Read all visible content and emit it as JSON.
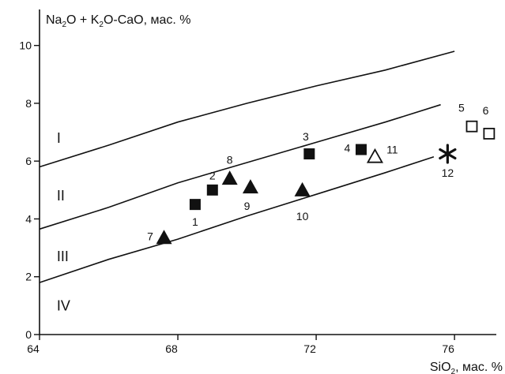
{
  "chart_data": {
    "type": "scatter",
    "ylabel_parts": [
      "Na",
      "2",
      "O + K",
      "2",
      "O-CaO, мас. %"
    ],
    "xlabel_parts": [
      "SiO",
      "2",
      ", мас. %"
    ],
    "xlim": [
      64,
      77.3
    ],
    "ylim": [
      0,
      11
    ],
    "x_ticks": [
      64,
      68,
      72,
      76
    ],
    "y_ticks": [
      0,
      2,
      4,
      6,
      8,
      10
    ],
    "boundary_lines": [
      {
        "x": [
          64,
          66,
          68,
          70,
          72,
          74,
          76
        ],
        "y": [
          5.8,
          6.55,
          7.35,
          8.0,
          8.6,
          9.15,
          9.8
        ]
      },
      {
        "x": [
          64,
          66,
          68,
          70,
          72,
          74,
          75.6
        ],
        "y": [
          3.65,
          4.4,
          5.25,
          5.95,
          6.65,
          7.35,
          7.95
        ]
      },
      {
        "x": [
          64,
          66,
          68,
          70,
          72,
          74,
          75.4
        ],
        "y": [
          1.8,
          2.6,
          3.3,
          4.1,
          4.85,
          5.6,
          6.15
        ]
      }
    ],
    "fields": [
      {
        "label": "I",
        "x": 64.5,
        "y": 6.8
      },
      {
        "label": "II",
        "x": 64.5,
        "y": 4.8
      },
      {
        "label": "III",
        "x": 64.5,
        "y": 2.7
      },
      {
        "label": "IV",
        "x": 64.5,
        "y": 1.0
      }
    ],
    "points": [
      {
        "label": "1",
        "x": 68.5,
        "y": 4.5,
        "marker": "square-filled",
        "label_x": 68.5,
        "label_y": 3.9
      },
      {
        "label": "2",
        "x": 69.0,
        "y": 5.0,
        "marker": "square-filled",
        "label_x": 69.0,
        "label_y": 5.5
      },
      {
        "label": "3",
        "x": 71.8,
        "y": 6.25,
        "marker": "square-filled",
        "label_x": 71.7,
        "label_y": 6.85
      },
      {
        "label": "4",
        "x": 73.3,
        "y": 6.4,
        "marker": "square-filled",
        "label_x": 72.9,
        "label_y": 6.45
      },
      {
        "label": "5",
        "x": 76.5,
        "y": 7.2,
        "marker": "square-open",
        "label_x": 76.2,
        "label_y": 7.85
      },
      {
        "label": "6",
        "x": 77.0,
        "y": 6.95,
        "marker": "square-open",
        "label_x": 76.9,
        "label_y": 7.75
      },
      {
        "label": "7",
        "x": 67.6,
        "y": 3.35,
        "marker": "triangle-filled",
        "label_x": 67.2,
        "label_y": 3.4
      },
      {
        "label": "8",
        "x": 69.5,
        "y": 5.4,
        "marker": "triangle-filled",
        "label_x": 69.5,
        "label_y": 6.05
      },
      {
        "label": "9",
        "x": 70.1,
        "y": 5.1,
        "marker": "triangle-filled",
        "label_x": 70.0,
        "label_y": 4.45
      },
      {
        "label": "10",
        "x": 71.6,
        "y": 5.0,
        "marker": "triangle-filled",
        "label_x": 71.6,
        "label_y": 4.1
      },
      {
        "label": "11",
        "x": 73.7,
        "y": 6.15,
        "marker": "triangle-open",
        "label_x": 74.2,
        "label_y": 6.4
      },
      {
        "label": "12",
        "x": 75.8,
        "y": 6.25,
        "marker": "asterisk",
        "label_x": 75.8,
        "label_y": 5.6
      }
    ]
  }
}
